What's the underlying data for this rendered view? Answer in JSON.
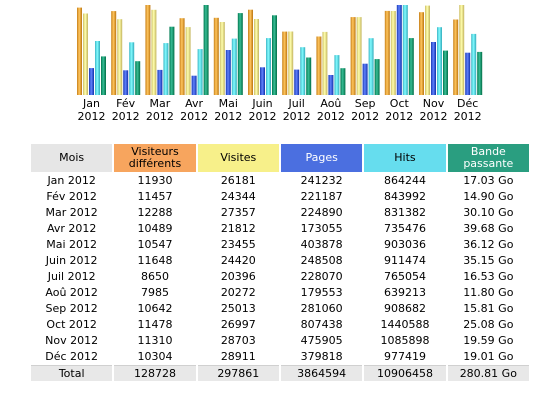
{
  "colors": {
    "visitors": "#e9a23b",
    "visits": "#efe08a",
    "pages": "#3d5dd8",
    "hits": "#5fd8e8",
    "bandwidth": "#159a72"
  },
  "headers": {
    "month": "Mois",
    "visitors": "Visiteurs différents",
    "visits": "Visites",
    "pages": "Pages",
    "hits": "Hits",
    "bandwidth": "Bande passante"
  },
  "rows": [
    {
      "month": "Jan 2012",
      "visitors": "11930",
      "visits": "26181",
      "pages": "241232",
      "hits": "864244",
      "bandwidth": "17.03 Go"
    },
    {
      "month": "Fév 2012",
      "visitors": "11457",
      "visits": "24344",
      "pages": "221187",
      "hits": "843992",
      "bandwidth": "14.90 Go"
    },
    {
      "month": "Mar 2012",
      "visitors": "12288",
      "visits": "27357",
      "pages": "224890",
      "hits": "831382",
      "bandwidth": "30.10 Go"
    },
    {
      "month": "Avr 2012",
      "visitors": "10489",
      "visits": "21812",
      "pages": "173055",
      "hits": "735476",
      "bandwidth": "39.68 Go"
    },
    {
      "month": "Mai 2012",
      "visitors": "10547",
      "visits": "23455",
      "pages": "403878",
      "hits": "903036",
      "bandwidth": "36.12 Go"
    },
    {
      "month": "Juin 2012",
      "visitors": "11648",
      "visits": "24420",
      "pages": "248508",
      "hits": "911474",
      "bandwidth": "35.15 Go"
    },
    {
      "month": "Juil 2012",
      "visitors": "8650",
      "visits": "20396",
      "pages": "228070",
      "hits": "765054",
      "bandwidth": "16.53 Go"
    },
    {
      "month": "Aoû 2012",
      "visitors": "7985",
      "visits": "20272",
      "pages": "179553",
      "hits": "639213",
      "bandwidth": "11.80 Go"
    },
    {
      "month": "Sep 2012",
      "visitors": "10642",
      "visits": "25013",
      "pages": "281060",
      "hits": "908682",
      "bandwidth": "15.81 Go"
    },
    {
      "month": "Oct 2012",
      "visitors": "11478",
      "visits": "26997",
      "pages": "807438",
      "hits": "1440588",
      "bandwidth": "25.08 Go"
    },
    {
      "month": "Nov 2012",
      "visitors": "11310",
      "visits": "28703",
      "pages": "475905",
      "hits": "1085898",
      "bandwidth": "19.59 Go"
    },
    {
      "month": "Déc 2012",
      "visitors": "10304",
      "visits": "28911",
      "pages": "379818",
      "hits": "977419",
      "bandwidth": "19.01 Go"
    }
  ],
  "total": {
    "label": "Total",
    "visitors": "128728",
    "visits": "297861",
    "pages": "3864594",
    "hits": "10906458",
    "bandwidth": "280.81 Go"
  },
  "chart_data": {
    "type": "bar",
    "categories": [
      "Jan 2012",
      "Fév 2012",
      "Mar 2012",
      "Avr 2012",
      "Mai 2012",
      "Juin 2012",
      "Juil 2012",
      "Aoû 2012",
      "Sep 2012",
      "Oct 2012",
      "Nov 2012",
      "Déc 2012"
    ],
    "month_names": [
      "Jan",
      "Fév",
      "Mar",
      "Avr",
      "Mai",
      "Juin",
      "Juil",
      "Aoû",
      "Sep",
      "Oct",
      "Nov",
      "Déc"
    ],
    "year": "2012",
    "series": [
      {
        "key": "visitors",
        "values": [
          11930,
          11457,
          12288,
          10489,
          10547,
          11648,
          8650,
          7985,
          10642,
          11478,
          11310,
          10304
        ]
      },
      {
        "key": "visits",
        "values": [
          26181,
          24344,
          27357,
          21812,
          23455,
          24420,
          20396,
          20272,
          25013,
          26997,
          28703,
          28911
        ]
      },
      {
        "key": "pages",
        "values": [
          241232,
          221187,
          224890,
          173055,
          403878,
          248508,
          228070,
          179553,
          281060,
          807438,
          475905,
          379818
        ]
      },
      {
        "key": "hits",
        "values": [
          864244,
          843992,
          831382,
          735476,
          903036,
          911474,
          765054,
          639213,
          908682,
          1440588,
          1085898,
          977419
        ]
      },
      {
        "key": "bandwidth",
        "values": [
          17.03,
          14.9,
          30.1,
          39.68,
          36.12,
          35.15,
          16.53,
          11.8,
          15.81,
          25.08,
          19.59,
          19.01
        ],
        "unit": "Go"
      }
    ]
  }
}
